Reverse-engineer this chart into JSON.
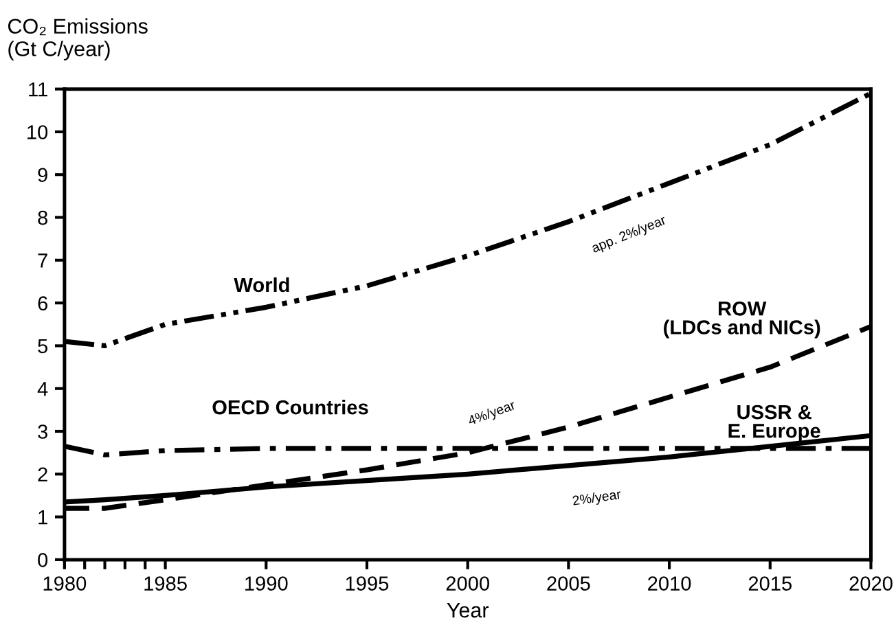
{
  "chart_data": {
    "type": "line",
    "ylabel": "CO₂ Emissions\n(Gt C/year)",
    "xlabel": "Year",
    "x": [
      1980,
      1982,
      1985,
      1990,
      1995,
      2000,
      2005,
      2010,
      2015,
      2020
    ],
    "series": [
      {
        "name": "World",
        "color": "#000000",
        "line_style": "dashdotdot",
        "values": [
          5.1,
          5.0,
          5.5,
          5.9,
          6.4,
          7.1,
          7.9,
          8.8,
          9.7,
          10.9
        ]
      },
      {
        "name": "OECD Countries",
        "color": "#000000",
        "line_style": "dashdot",
        "values": [
          2.65,
          2.45,
          2.55,
          2.6,
          2.6,
          2.6,
          2.6,
          2.6,
          2.6,
          2.6
        ]
      },
      {
        "name": "ROW\n(LDCs and NICs)",
        "color": "#000000",
        "line_style": "dashed",
        "values": [
          1.2,
          1.2,
          1.4,
          1.75,
          2.1,
          2.5,
          3.1,
          3.8,
          4.5,
          5.45
        ]
      },
      {
        "name": "USSR &\nE. Europe",
        "color": "#000000",
        "line_style": "solid",
        "values": [
          1.35,
          1.4,
          1.5,
          1.7,
          1.85,
          2.0,
          2.2,
          2.4,
          2.65,
          2.9
        ]
      }
    ],
    "annotations": [
      "app. 2%/year",
      "4%/year",
      "2%/year"
    ],
    "xlim": [
      1980,
      2020
    ],
    "ylim": [
      0,
      11
    ],
    "xticks": [
      1980,
      {
        "value": 1981,
        "label": null
      },
      {
        "value": 1982,
        "label": null
      },
      {
        "value": 1983,
        "label": null
      },
      {
        "value": 1984,
        "label": null
      },
      1985,
      1990,
      1995,
      2000,
      2005,
      2010,
      2015,
      2020
    ],
    "yticks": [
      0,
      1,
      2,
      3,
      4,
      5,
      6,
      7,
      8,
      9,
      10,
      11
    ],
    "grid": false,
    "legend": false,
    "marker": "none"
  }
}
